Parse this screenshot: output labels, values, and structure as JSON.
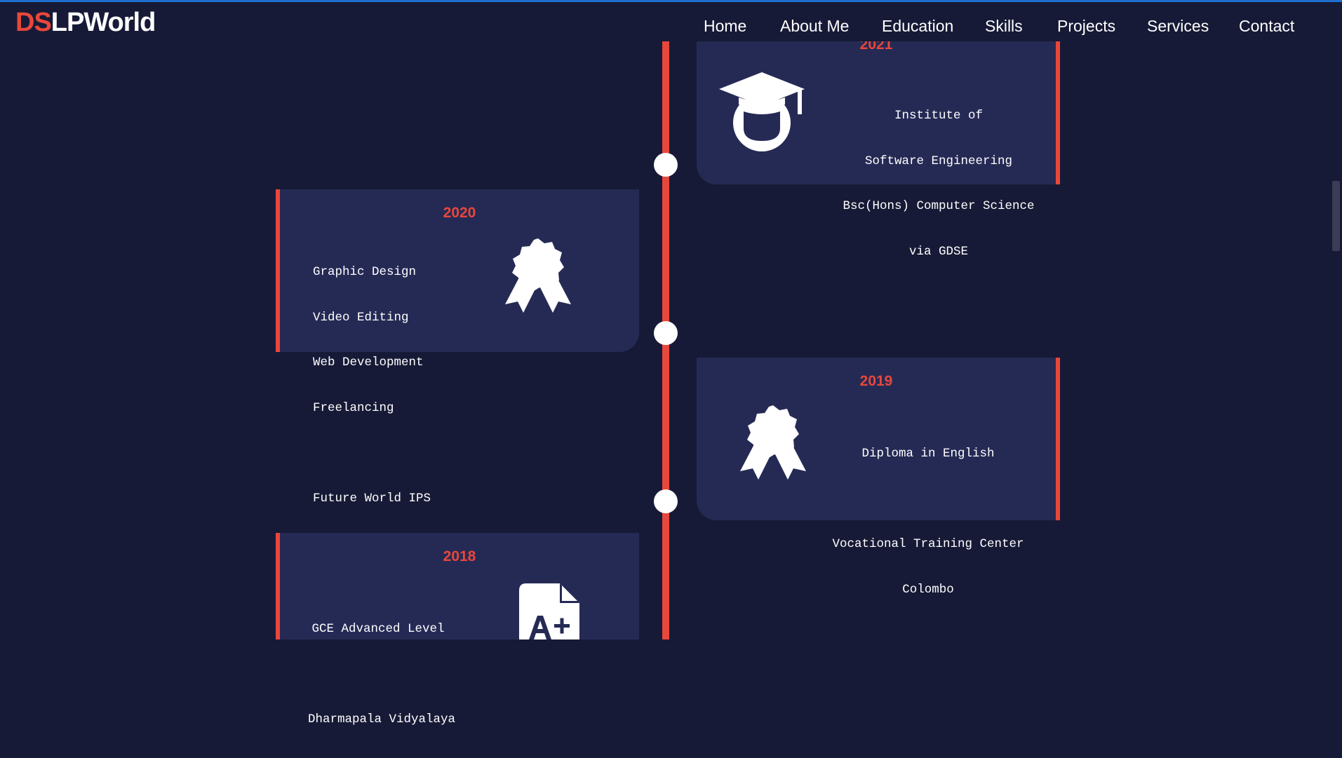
{
  "logo": {
    "part1": "DS",
    "part2": "LPWorld"
  },
  "nav": [
    "Home",
    "About Me",
    "Education",
    "Skills",
    "Projects",
    "Services",
    "Contact"
  ],
  "timeline": [
    {
      "year": "2021",
      "lines": [
        "Institute of",
        "Software Engineering",
        "Bsc(Hons) Computer Science",
        "via GDSE"
      ],
      "icon": "graduation-cap-icon"
    },
    {
      "year": "2020",
      "lines": [
        "Graphic Design",
        "Video Editing",
        "Web Development",
        "Freelancing",
        "",
        "Future World IPS"
      ],
      "icon": "award-ribbon-icon"
    },
    {
      "year": "2019",
      "lines": [
        "Diploma in English",
        "",
        "Vocational Training Center",
        "Colombo"
      ],
      "icon": "award-ribbon-icon"
    },
    {
      "year": "2018",
      "lines": [
        "GCE Advanced Level",
        "",
        "Dharmapala Vidyalaya"
      ],
      "icon": "a-plus-document-icon"
    }
  ]
}
